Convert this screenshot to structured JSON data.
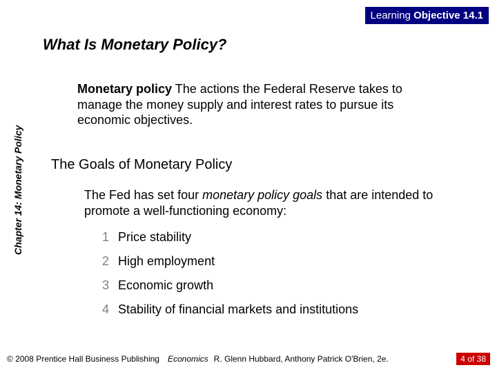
{
  "header": {
    "label_prefix": "Learning ",
    "label_bold": "Objective",
    "number": " 14.1"
  },
  "title": "What Is Monetary Policy?",
  "definition": {
    "term": "Monetary policy",
    "text": "  The actions the Federal Reserve takes to manage the money supply and interest rates to pursue its economic objectives."
  },
  "subheading": "The Goals of Monetary Policy",
  "intro": {
    "pre": "The Fed has set four ",
    "em": "monetary policy goals",
    "post": " that are intended to promote a well-functioning economy:"
  },
  "goals": [
    {
      "n": "1",
      "label": "Price stability"
    },
    {
      "n": "2",
      "label": "High employment"
    },
    {
      "n": "3",
      "label": "Economic growth"
    },
    {
      "n": "4",
      "label": "Stability of financial markets and institutions"
    }
  ],
  "side_label": "Chapter 14: Monetary Policy",
  "footer": {
    "copyright": "© 2008 Prentice Hall Business Publishing",
    "book": "Economics",
    "authors": "R. Glenn Hubbard, Anthony Patrick O'Brien, 2e.",
    "page": "4 of 38"
  },
  "colors": {
    "header_bg": "#000080",
    "page_badge_bg": "#cc0000",
    "list_number": "#808080"
  }
}
